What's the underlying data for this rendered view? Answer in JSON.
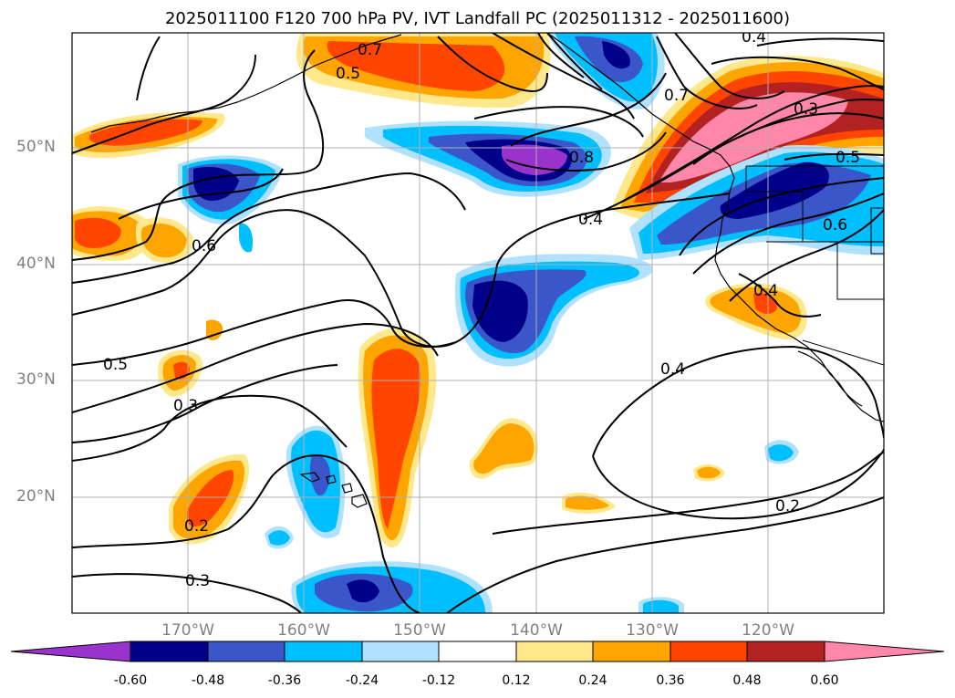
{
  "title": "2025011100 F120 700 hPa PV, IVT Landfall PC (2025011312 - 2025011600)",
  "lat_ticks": [
    "50°N",
    "40°N",
    "30°N",
    "20°N"
  ],
  "lon_ticks": [
    "170°W",
    "160°W",
    "150°W",
    "140°W",
    "130°W",
    "120°W"
  ],
  "contour_labels": [
    "0.4",
    "0.5",
    "0.7",
    "0.7",
    "0.3",
    "0.8",
    "0.4",
    "0.5",
    "0.6",
    "0.6",
    "0.4",
    "0.5",
    "0.3",
    "0.4",
    "0.2",
    "0.2",
    "0.3"
  ],
  "colorbar": {
    "labels": [
      "-0.60",
      "-0.48",
      "-0.36",
      "-0.24",
      "-0.12",
      "0.12",
      "0.24",
      "0.36",
      "0.48",
      "0.60"
    ],
    "colors": [
      "#9933cc",
      "#00008b",
      "#3a56c8",
      "#00bfff",
      "#b0e2ff",
      "#ffffff",
      "#ffe88c",
      "#ffa500",
      "#ff4500",
      "#b22222",
      "#ff88aa"
    ]
  }
}
